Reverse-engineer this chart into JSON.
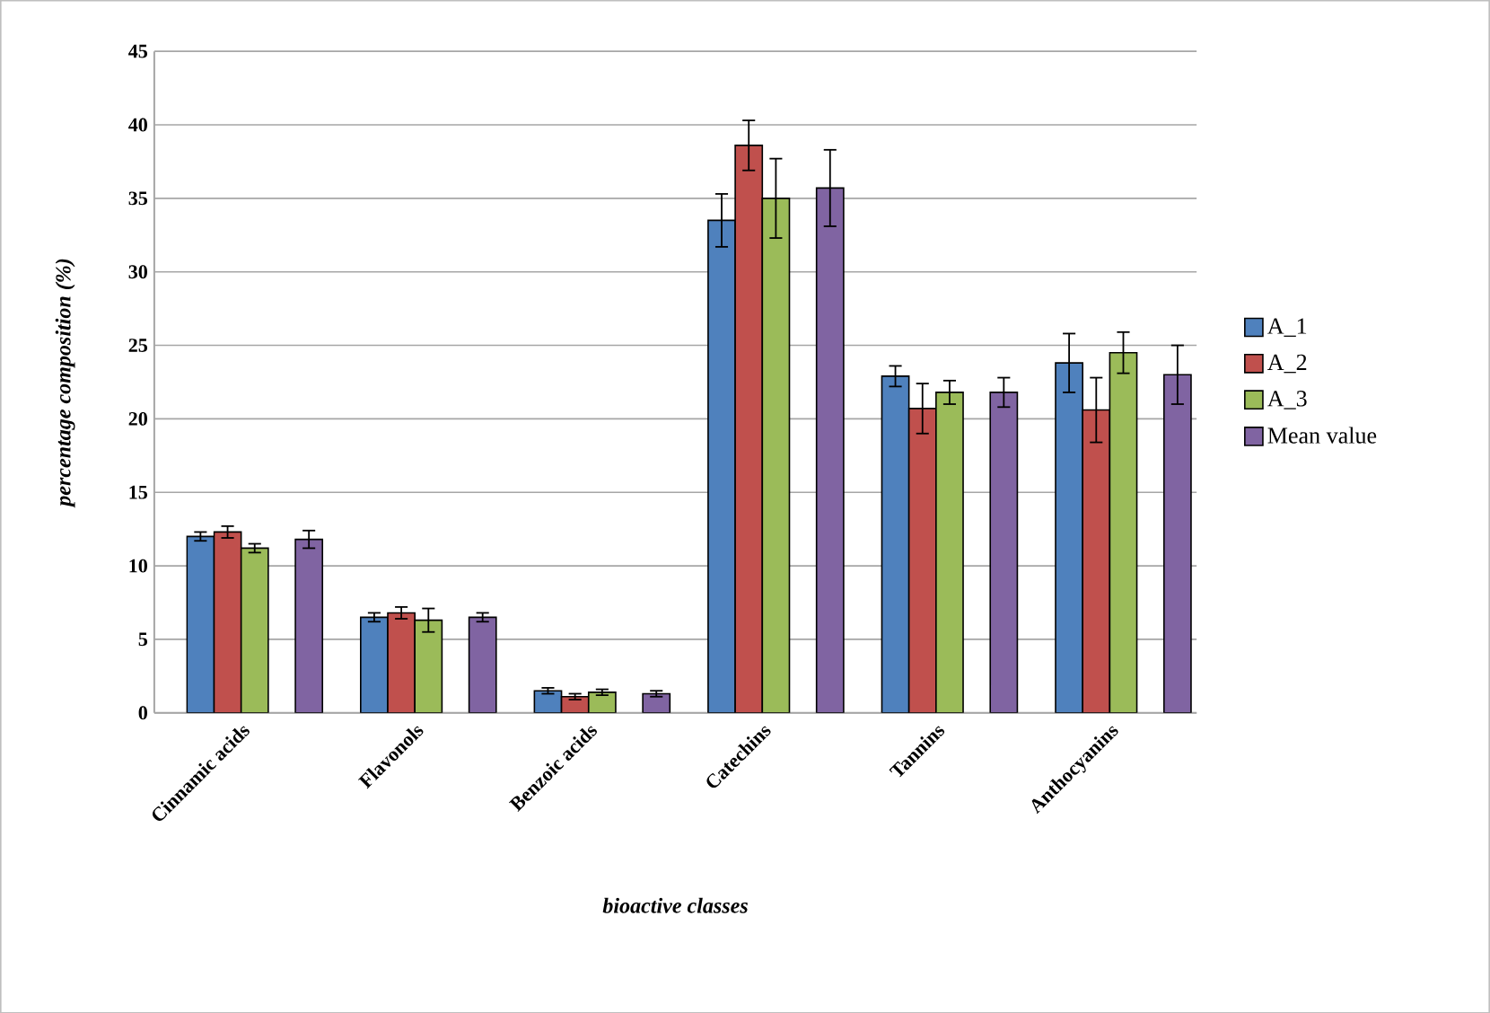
{
  "chart_data": {
    "type": "bar",
    "xlabel": "bioactive classes",
    "ylabel": "percentage composition (%)",
    "categories": [
      "Cinnamic acids",
      "Flavonols",
      "Benzoic acids",
      "Catechins",
      "Tannins",
      "Anthocyanins"
    ],
    "series": [
      {
        "name": "A_1",
        "color": "#4f81bd",
        "values": [
          12.0,
          6.5,
          1.5,
          33.5,
          22.9,
          23.8
        ],
        "errors": [
          0.3,
          0.3,
          0.2,
          1.8,
          0.7,
          2.0
        ]
      },
      {
        "name": "A_2",
        "color": "#c0504d",
        "values": [
          12.3,
          6.8,
          1.1,
          38.6,
          20.7,
          20.6
        ],
        "errors": [
          0.4,
          0.4,
          0.2,
          1.7,
          1.7,
          2.2
        ]
      },
      {
        "name": "A_3",
        "color": "#9bbb59",
        "values": [
          11.2,
          6.3,
          1.4,
          35.0,
          21.8,
          24.5
        ],
        "errors": [
          0.3,
          0.8,
          0.2,
          2.7,
          0.8,
          1.4
        ]
      },
      {
        "name": "Mean value",
        "color": "#8064a2",
        "values": [
          11.8,
          6.5,
          1.3,
          35.7,
          21.8,
          23.0
        ],
        "errors": [
          0.6,
          0.3,
          0.2,
          2.6,
          1.0,
          2.0
        ]
      }
    ],
    "ylim": [
      0,
      45
    ],
    "yticks": [
      0,
      5,
      10,
      15,
      20,
      25,
      30,
      35,
      40,
      45
    ],
    "grid": "y",
    "legend": "right"
  }
}
